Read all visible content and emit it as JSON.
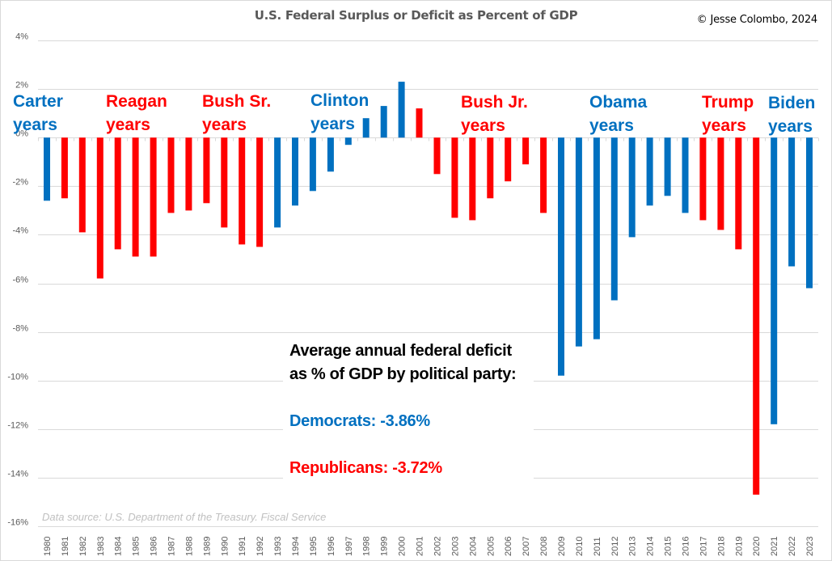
{
  "chart_data": {
    "type": "bar",
    "title": "U.S. Federal Surplus or Deficit as Percent of GDP",
    "credit": "© Jesse Colombo, 2024",
    "source": "Data source: U.S. Department of the Treasury. Fiscal Service",
    "xlabel": "",
    "ylabel": "",
    "ylim": [
      -16,
      4
    ],
    "yticks": [
      4,
      2,
      0,
      -2,
      -4,
      -6,
      -8,
      -10,
      -12,
      -14,
      -16
    ],
    "ytick_labels": [
      "4%",
      "2%",
      "0%",
      "-2%",
      "-4%",
      "-6%",
      "-8%",
      "-10%",
      "-12%",
      "-14%",
      "-16%"
    ],
    "grid": true,
    "legend": "none",
    "categories": [
      "1980",
      "1981",
      "1982",
      "1983",
      "1984",
      "1985",
      "1986",
      "1987",
      "1988",
      "1989",
      "1990",
      "1991",
      "1992",
      "1993",
      "1994",
      "1995",
      "1996",
      "1997",
      "1998",
      "1999",
      "2000",
      "2001",
      "2002",
      "2003",
      "2004",
      "2005",
      "2006",
      "2007",
      "2008",
      "2009",
      "2010",
      "2011",
      "2012",
      "2013",
      "2014",
      "2015",
      "2016",
      "2017",
      "2018",
      "2019",
      "2020",
      "2021",
      "2022",
      "2023"
    ],
    "values": [
      -2.6,
      -2.5,
      -3.9,
      -5.8,
      -4.6,
      -4.9,
      -4.9,
      -3.1,
      -3.0,
      -2.7,
      -3.7,
      -4.4,
      -4.5,
      -3.7,
      -2.8,
      -2.2,
      -1.4,
      -0.3,
      0.8,
      1.3,
      2.3,
      1.2,
      -1.5,
      -3.3,
      -3.4,
      -2.5,
      -1.8,
      -1.1,
      -3.1,
      -9.8,
      -8.6,
      -8.3,
      -6.7,
      -4.1,
      -2.8,
      -2.4,
      -3.1,
      -3.4,
      -3.8,
      -4.6,
      -14.7,
      -11.8,
      -5.3,
      -6.2
    ],
    "party": [
      "D",
      "R",
      "R",
      "R",
      "R",
      "R",
      "R",
      "R",
      "R",
      "R",
      "R",
      "R",
      "R",
      "D",
      "D",
      "D",
      "D",
      "D",
      "D",
      "D",
      "D",
      "R",
      "R",
      "R",
      "R",
      "R",
      "R",
      "R",
      "R",
      "D",
      "D",
      "D",
      "D",
      "D",
      "D",
      "D",
      "D",
      "R",
      "R",
      "R",
      "R",
      "D",
      "D",
      "D"
    ],
    "party_colors": {
      "D": "#0070C0",
      "R": "#FF0000"
    },
    "era_labels": [
      {
        "line1": "Carter",
        "line2": "years",
        "party": "D"
      },
      {
        "line1": "Reagan",
        "line2": "years",
        "party": "R"
      },
      {
        "line1": "Bush Sr.",
        "line2": "years",
        "party": "R"
      },
      {
        "line1": "Clinton",
        "line2": "years",
        "party": "D"
      },
      {
        "line1": "Bush Jr.",
        "line2": "years",
        "party": "R"
      },
      {
        "line1": "Obama",
        "line2": "years",
        "party": "D"
      },
      {
        "line1": "Trump",
        "line2": "years",
        "party": "R"
      },
      {
        "line1": "Biden",
        "line2": "years",
        "party": "D"
      }
    ],
    "annotation": {
      "heading_line1": "Average annual federal deficit",
      "heading_line2": "as % of GDP by political party:",
      "democrats": "Democrats: -3.86%",
      "republicans": "Republicans: -3.72%"
    }
  }
}
